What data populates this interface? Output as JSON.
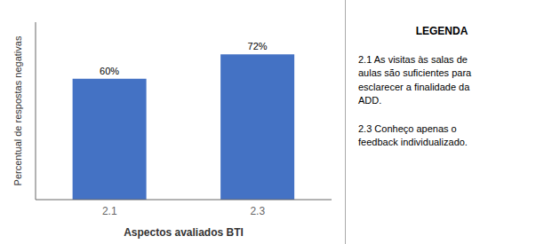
{
  "chart_data": {
    "type": "bar",
    "categories": [
      "2.1",
      "2.3"
    ],
    "values": [
      60,
      72
    ],
    "value_labels": [
      "60%",
      "72%"
    ],
    "data_labels": true,
    "color": "#4472C4",
    "ylabel": "Percentual de respostas negativas",
    "xlabel": "Aspectos avaliados BTI",
    "ylim": [
      0,
      88
    ],
    "tick_labels": "x",
    "grid": false,
    "annotations": [
      "LEGENDA",
      "2.1 As visitas às salas de\naulas são suficientes para\nesclarecer a finalidade da\nADD.",
      "2.3  Conheço apenas o\nfeedback individualizado."
    ]
  }
}
